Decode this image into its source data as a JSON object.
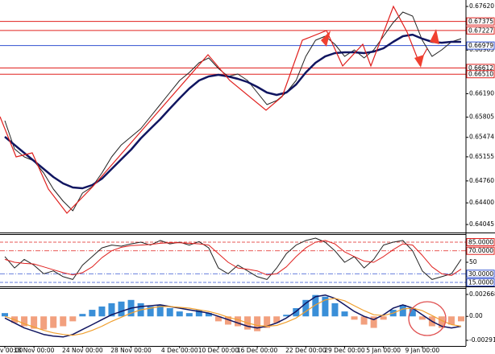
{
  "chart_data": [
    {
      "type": "line",
      "ylim": [
        0.63914,
        0.67726
      ],
      "yticks": [
        {
          "value": 0.6762,
          "label": "0.67620"
        },
        0.66905,
        {
          "value": 0.6619,
          "label": "0.66190"
        },
        0.65805,
        0.65474,
        0.65155,
        {
          "value": 0.6476,
          "label": "0.64760"
        },
        {
          "value": 0.644,
          "label": "0.64400"
        },
        0.64045
      ],
      "hlines": [
        {
          "value": 0.67375,
          "color": "#e0201e"
        },
        {
          "value": 0.67227,
          "color": "#e0201e"
        },
        {
          "value": 0.66979,
          "color": "#3050d0"
        },
        {
          "value": 0.66612,
          "color": "#e0201e"
        },
        {
          "value": 0.6651,
          "label": "0.66510",
          "color": "#e0201e"
        }
      ],
      "series": [
        {
          "color": "#222222",
          "width": 1,
          "values": [
            0.65747,
            0.65285,
            0.65154,
            0.65088,
            0.6489,
            0.64626,
            0.64428,
            0.6427,
            0.6456,
            0.64665,
            0.6489,
            0.65154,
            0.65351,
            0.65483,
            0.65615,
            0.65813,
            0.66011,
            0.66209,
            0.66407,
            0.66538,
            0.66697,
            0.66776,
            0.66604,
            0.66473,
            0.66512,
            0.66407,
            0.66209,
            0.66011,
            0.66077,
            0.66209,
            0.66407,
            0.66802,
            0.67066,
            0.67132,
            0.67,
            0.66802,
            0.66908,
            0.66776,
            0.66908,
            0.67132,
            0.67356,
            0.67528,
            0.67462,
            0.67066,
            0.66802,
            0.66908,
            0.6704,
            0.67092
          ]
        },
        {
          "color": "#101560",
          "width": 2.5,
          "values": [
            0.65483,
            0.65351,
            0.65219,
            0.65088,
            0.64956,
            0.64824,
            0.64718,
            0.64652,
            0.64639,
            0.64692,
            0.64797,
            0.64956,
            0.65114,
            0.65272,
            0.65457,
            0.65615,
            0.65773,
            0.65945,
            0.66116,
            0.66275,
            0.66407,
            0.66473,
            0.66499,
            0.66473,
            0.66433,
            0.6638,
            0.66301,
            0.66209,
            0.66169,
            0.66209,
            0.66341,
            0.66538,
            0.66697,
            0.66802,
            0.66855,
            0.66868,
            0.66868,
            0.66855,
            0.66881,
            0.66934,
            0.6704,
            0.67132,
            0.67158,
            0.67092,
            0.6704,
            0.67026,
            0.6704,
            0.6704
          ]
        }
      ]
    },
    {
      "type": "line",
      "ylim": [
        8,
        99
      ],
      "yticks": [
        {
          "value": 85,
          "label": "85.0000",
          "color": "#e0201e",
          "style": "dashed"
        },
        {
          "value": 70,
          "label": "70.0000",
          "color": "#e0201e",
          "style": "dashdot"
        },
        50,
        {
          "value": 30,
          "label": "30.0000",
          "color": "#3050d0",
          "style": "dashdot"
        },
        {
          "value": 15,
          "label": "15.0000",
          "color": "#3050d0",
          "style": "dashed"
        }
      ],
      "series": [
        {
          "color": "#222222",
          "width": 1,
          "values": [
            60,
            40,
            55,
            45,
            30,
            35,
            25,
            20,
            45,
            60,
            75,
            80,
            78,
            82,
            85,
            80,
            88,
            82,
            85,
            80,
            86,
            75,
            40,
            30,
            45,
            35,
            25,
            20,
            40,
            65,
            80,
            88,
            92,
            85,
            70,
            50,
            60,
            40,
            55,
            80,
            85,
            88,
            70,
            35,
            20,
            25,
            30,
            55
          ]
        },
        {
          "color": "#e0201e",
          "width": 1,
          "values": [
            55,
            50,
            48,
            47,
            42,
            37,
            32,
            28,
            32,
            42,
            58,
            70,
            76,
            79,
            80,
            81,
            83,
            84,
            84,
            83,
            82,
            80,
            65,
            50,
            40,
            38,
            35,
            28,
            30,
            42,
            60,
            75,
            85,
            88,
            82,
            68,
            60,
            52,
            50,
            60,
            72,
            82,
            80,
            62,
            42,
            30,
            27,
            38
          ]
        }
      ]
    },
    {
      "type": "bar",
      "ylim": [
        -0.003596,
        0.003448
      ],
      "yticks": [
        0.0026683,
        {
          "value": 0,
          "label": "0.00"
        },
        -0.002913
      ],
      "categories": [
        "v 00:00",
        null,
        null,
        "18 Nov 00:00",
        null,
        null,
        null,
        null,
        "24 Nov 00:00",
        null,
        null,
        null,
        null,
        "28 Nov 00:00",
        null,
        null,
        null,
        null,
        "4 Dec 00:00",
        null,
        null,
        null,
        "10 Dec 00:00",
        null,
        null,
        null,
        "16 Dec 00:00",
        null,
        null,
        null,
        null,
        "22 Dec 00:00",
        null,
        null,
        null,
        "29 Dec 00:00",
        null,
        null,
        null,
        "5 Jan 00:00",
        null,
        null,
        null,
        "9 Jan 00:00",
        null,
        null,
        null,
        null
      ],
      "color": "#3a8fd8",
      "negative_color": "#f2a07e",
      "values": [
        0.0004,
        -0.0008,
        -0.0012,
        -0.0015,
        -0.0016,
        -0.0014,
        -0.0012,
        -0.0006,
        0.0003,
        0.0008,
        0.0012,
        0.0016,
        0.0018,
        0.002,
        0.0016,
        0.0012,
        0.0014,
        0.001,
        0.0006,
        0.0004,
        0.0008,
        0.0004,
        -0.0006,
        -0.001,
        -0.0012,
        -0.0016,
        -0.0018,
        -0.0014,
        -0.0008,
        0.0002,
        0.001,
        0.002,
        0.0026,
        0.0024,
        0.0016,
        0.0006,
        -0.0004,
        -0.001,
        -0.0014,
        -0.0004,
        0.0008,
        0.0014,
        0.001,
        -0.0004,
        -0.0012,
        -0.0014,
        -0.001,
        -0.0006
      ],
      "series": [
        {
          "color": "#101560",
          "width": 1.5,
          "values": [
            -0.0002,
            -0.0008,
            -0.0014,
            -0.0018,
            -0.0022,
            -0.0024,
            -0.0025,
            -0.0022,
            -0.0016,
            -0.001,
            -0.0004,
            0.0002,
            0.0006,
            0.001,
            0.0012,
            0.0013,
            0.0014,
            0.0012,
            0.001,
            0.0008,
            0.0006,
            0.0004,
            0,
            -0.0004,
            -0.0008,
            -0.0012,
            -0.0014,
            -0.0012,
            -0.0008,
            -0.0002,
            0.0006,
            0.0016,
            0.0024,
            0.0026,
            0.0022,
            0.0014,
            0.0006,
            0,
            -0.0004,
            0.0002,
            0.001,
            0.0014,
            0.001,
            0.0002,
            -0.0006,
            -0.0012,
            -0.0014,
            -0.0012
          ]
        },
        {
          "color": "#f0a030",
          "width": 1.2,
          "values": [
            0,
            -0.0004,
            -0.0009,
            -0.0013,
            -0.0017,
            -0.002,
            -0.0022,
            -0.0023,
            -0.0021,
            -0.0017,
            -0.0012,
            -0.0006,
            -0.0001,
            0.0004,
            0.0008,
            0.001,
            0.0012,
            0.0012,
            0.0011,
            0.001,
            0.0008,
            0.0006,
            0.0003,
            -0.0001,
            -0.0004,
            -0.0008,
            -0.0011,
            -0.0012,
            -0.0011,
            -0.0007,
            -0.0002,
            0.0006,
            0.0014,
            0.002,
            0.0022,
            0.0019,
            0.0013,
            0.0007,
            0.0002,
            0.0001,
            0.0004,
            0.0009,
            0.001,
            0.0007,
            0.0001,
            -0.0005,
            -0.001,
            -0.0012
          ]
        }
      ]
    }
  ]
}
